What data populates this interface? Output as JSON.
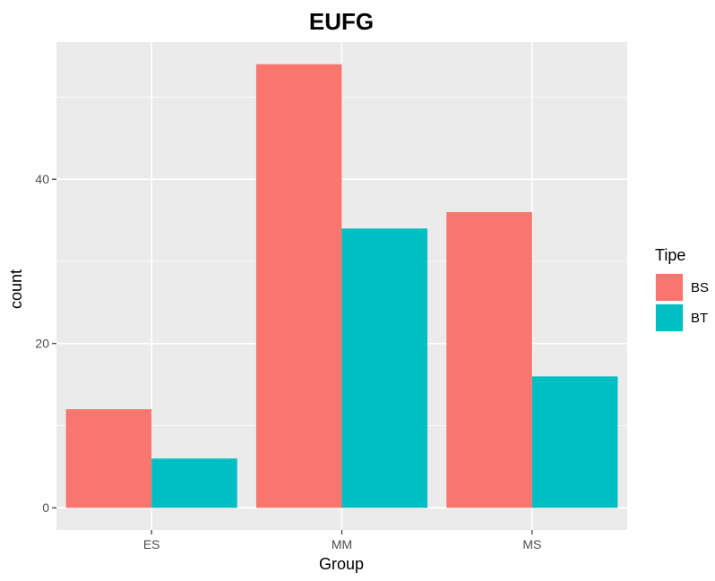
{
  "chart_data": {
    "type": "bar",
    "title": "EUFG",
    "xlabel": "Group",
    "ylabel": "count",
    "categories": [
      "ES",
      "MM",
      "MS"
    ],
    "series": [
      {
        "name": "BS",
        "values": [
          12,
          54,
          36
        ],
        "color": "#F8766D"
      },
      {
        "name": "BT",
        "values": [
          6,
          34,
          16
        ],
        "color": "#00BFC4"
      }
    ],
    "ylim": [
      -2.7,
      56.7
    ],
    "yticks": [
      0,
      20,
      40
    ],
    "grid": true,
    "legend": {
      "title": "Tipe",
      "position": "right"
    },
    "panel_background": "#EBEBEB",
    "grid_color": "#FFFFFF"
  }
}
